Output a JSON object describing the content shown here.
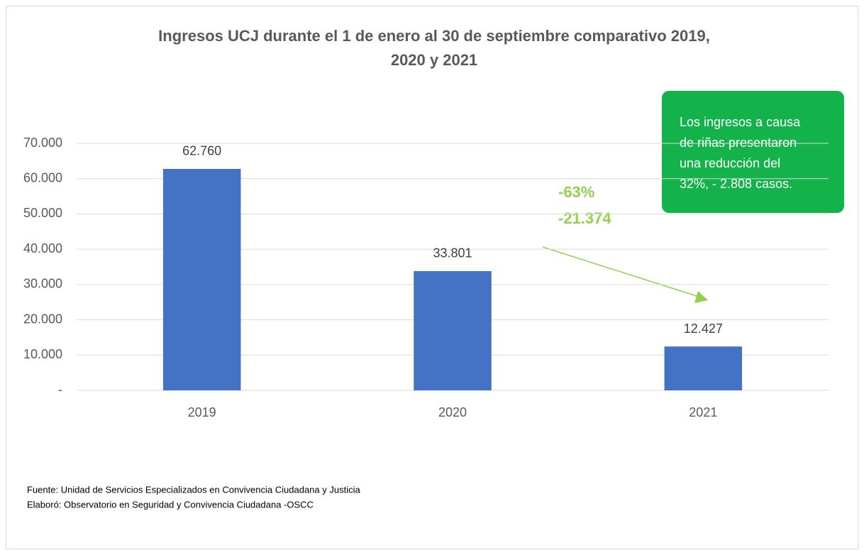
{
  "chart_data": {
    "type": "bar",
    "title": [
      "Ingresos UCJ durante el 1 de enero al 30 de septiembre comparativo 2019,",
      "2020 y 2021"
    ],
    "categories": [
      "2019",
      "2020",
      "2021"
    ],
    "values": [
      62760,
      33801,
      12427
    ],
    "value_labels": [
      "62.760",
      "33.801",
      "12.427"
    ],
    "color": "#4472c4",
    "ylim": [
      0,
      70000
    ],
    "yticks": [
      {
        "value": 0,
        "label": "-"
      },
      {
        "value": 10000,
        "label": "10.000"
      },
      {
        "value": 20000,
        "label": "20.000"
      },
      {
        "value": 30000,
        "label": "30.000"
      },
      {
        "value": 40000,
        "label": "40.000"
      },
      {
        "value": 50000,
        "label": "50.000"
      },
      {
        "value": 60000,
        "label": "60.000"
      },
      {
        "value": 70000,
        "label": "70.000"
      }
    ],
    "grid": true,
    "annotations": [
      "-63%",
      "-21.374"
    ],
    "callout": [
      "Los ingresos a causa",
      "de riñas presentaron",
      "una reducción del",
      "32%, - 2.808 casos."
    ],
    "footnotes": [
      "Fuente: Unidad de Servicios Especializados en Convivencia Ciudadana y Justicia",
      "Elaboró:  Observatorio en Seguridad y Convivencia Ciudadana -OSCC"
    ]
  }
}
